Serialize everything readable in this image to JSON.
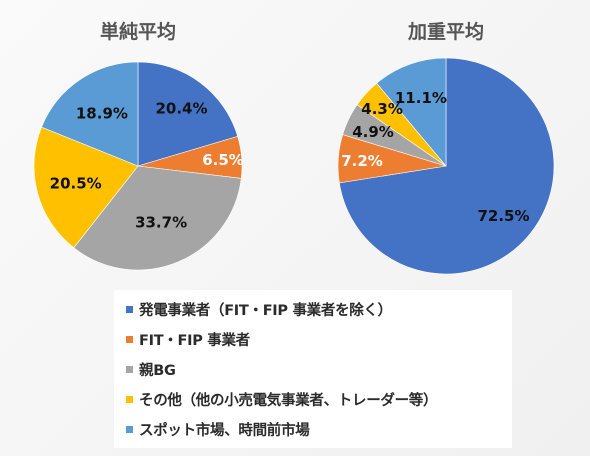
{
  "chart_data": [
    {
      "type": "pie",
      "title": "単純平均",
      "series": [
        {
          "name": "発電事業者（FIT・FIP 事業者を除く）",
          "value": 20.4,
          "label": "20.4%"
        },
        {
          "name": "FIT・FIP 事業者",
          "value": 6.5,
          "label": "6.5%"
        },
        {
          "name": "親BG",
          "value": 33.7,
          "label": "33.7%"
        },
        {
          "name": "その他（他の小売電気事業者、トレーダー等）",
          "value": 20.5,
          "label": "20.5%"
        },
        {
          "name": "スポット市場、時間前市場",
          "value": 18.9,
          "label": "18.9%"
        }
      ]
    },
    {
      "type": "pie",
      "title": "加重平均",
      "series": [
        {
          "name": "発電事業者（FIT・FIP 事業者を除く）",
          "value": 72.5,
          "label": "72.5%"
        },
        {
          "name": "FIT・FIP 事業者",
          "value": 7.2,
          "label": "7.2%"
        },
        {
          "name": "親BG",
          "value": 4.9,
          "label": "4.9%"
        },
        {
          "name": "その他（他の小売電気事業者、トレーダー等）",
          "value": 4.3,
          "label": "4.3%"
        },
        {
          "name": "スポット市場、時間前市場",
          "value": 11.1,
          "label": "11.1%"
        }
      ]
    }
  ],
  "colors": [
    "#4472c4",
    "#ed7d31",
    "#a5a5a5",
    "#ffc000",
    "#5b9bd5"
  ],
  "legend": {
    "placement": "bottom-center",
    "items": [
      "発電事業者（FIT・FIP 事業者を除く）",
      "FIT・FIP 事業者",
      "親BG",
      "その他（他の小売電気事業者、トレーダー等）",
      "スポット市場、時間前市場"
    ]
  }
}
